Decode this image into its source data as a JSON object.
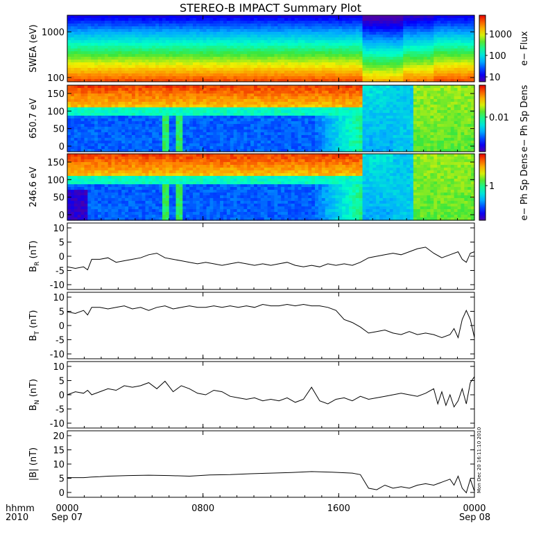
{
  "title": "STEREO-B IMPACT Summary Plot",
  "footer": {
    "hhmm": "hhmm",
    "year": "2010",
    "start_date": "Sep 07",
    "end_date": "Sep 08",
    "timestamp": "Mon Dec 20 16:11:10 2010"
  },
  "time_ticks": [
    "0000",
    "0800",
    "1600",
    "0000"
  ],
  "colors": {
    "line": "#000000",
    "background": "#ffffff"
  },
  "chart_data": [
    {
      "type": "heatmap",
      "ylabel": "SWEA (eV)",
      "colorbar_label": "e− Flux",
      "y_scale": "log",
      "yticks": [
        "1000",
        "100"
      ],
      "cbar_ticks": [
        "1000",
        "100",
        "10"
      ],
      "profile_stops": [
        0.02,
        0.1,
        0.22,
        0.4,
        0.6,
        0.8,
        0.94
      ],
      "regime_x": [
        0,
        0.6,
        0.6,
        0.75,
        0.8,
        0.9,
        1.0
      ],
      "regime_shift": [
        0,
        0,
        0,
        0.12,
        0.08,
        0.0,
        0.0
      ]
    },
    {
      "type": "heatmap",
      "ylabel": "650.7 eV",
      "colorbar_label": "e− Ph Sp Dens",
      "ylim": [
        0,
        180
      ],
      "yticks": [
        "150",
        "100",
        "50",
        "0"
      ],
      "cbar_ticks": [
        "0.01"
      ]
    },
    {
      "type": "heatmap",
      "ylabel": "246.6 eV",
      "colorbar_label": "e− Ph Sp Dens",
      "ylim": [
        0,
        180
      ],
      "yticks": [
        "150",
        "100",
        "50",
        "0"
      ],
      "cbar_ticks": [
        "1"
      ]
    },
    {
      "type": "line",
      "ylabel_main": "B",
      "ylabel_sub": "R",
      "ylabel_unit": "(nT)",
      "ylim": [
        -11,
        11
      ],
      "yticks": [
        "10",
        "5",
        "0",
        "-5",
        "-10"
      ],
      "x": [
        0,
        0.02,
        0.04,
        0.05,
        0.06,
        0.08,
        0.1,
        0.12,
        0.14,
        0.16,
        0.18,
        0.2,
        0.22,
        0.24,
        0.26,
        0.28,
        0.3,
        0.32,
        0.34,
        0.36,
        0.38,
        0.4,
        0.42,
        0.44,
        0.46,
        0.48,
        0.5,
        0.52,
        0.54,
        0.56,
        0.58,
        0.6,
        0.62,
        0.64,
        0.66,
        0.68,
        0.7,
        0.72,
        0.74,
        0.76,
        0.78,
        0.8,
        0.82,
        0.84,
        0.86,
        0.88,
        0.9,
        0.92,
        0.94,
        0.96,
        0.97,
        0.98,
        0.99,
        1.0
      ],
      "y": [
        -3.5,
        -4,
        -3.5,
        -4.5,
        -1,
        -1,
        -0.5,
        -2,
        -1.5,
        -1,
        -0.5,
        0.5,
        1,
        -0.5,
        -1,
        -1.5,
        -2,
        -2.5,
        -2,
        -2.5,
        -3,
        -2.5,
        -2,
        -2.5,
        -3,
        -2.5,
        -3,
        -2.5,
        -2,
        -3,
        -3.5,
        -3,
        -3.5,
        -2.5,
        -3,
        -2.5,
        -3,
        -2,
        -0.5,
        0,
        0.5,
        1,
        0.5,
        1.5,
        2.5,
        3,
        1,
        -0.5,
        0.5,
        1.5,
        -1,
        -2,
        1,
        1.5
      ]
    },
    {
      "type": "line",
      "ylabel_main": "B",
      "ylabel_sub": "T",
      "ylabel_unit": "(nT)",
      "ylim": [
        -11,
        11
      ],
      "yticks": [
        "10",
        "5",
        "0",
        "-5",
        "-10"
      ],
      "x": [
        0,
        0.02,
        0.04,
        0.05,
        0.06,
        0.08,
        0.1,
        0.12,
        0.14,
        0.16,
        0.18,
        0.2,
        0.22,
        0.24,
        0.26,
        0.28,
        0.3,
        0.32,
        0.34,
        0.36,
        0.38,
        0.4,
        0.42,
        0.44,
        0.46,
        0.48,
        0.5,
        0.52,
        0.54,
        0.56,
        0.58,
        0.6,
        0.62,
        0.64,
        0.66,
        0.68,
        0.7,
        0.72,
        0.74,
        0.76,
        0.78,
        0.8,
        0.82,
        0.84,
        0.86,
        0.88,
        0.9,
        0.92,
        0.94,
        0.95,
        0.96,
        0.97,
        0.98,
        0.99,
        1.0
      ],
      "y": [
        4.5,
        4,
        5,
        3.5,
        6,
        6,
        5.5,
        6,
        6.5,
        5.5,
        6,
        5,
        6,
        6.5,
        5.5,
        6,
        6.5,
        6,
        6,
        6.5,
        6,
        6.5,
        6,
        6.5,
        6,
        7,
        6.5,
        6.5,
        7,
        6.5,
        7,
        6.5,
        6.5,
        6,
        5,
        2,
        1,
        -0.5,
        -2.5,
        -2,
        -1.5,
        -2.5,
        -3,
        -2,
        -3,
        -2.5,
        -3,
        -4,
        -3,
        -1,
        -4,
        2,
        5,
        2,
        -4
      ]
    },
    {
      "type": "line",
      "ylabel_main": "B",
      "ylabel_sub": "N",
      "ylabel_unit": "(nT)",
      "ylim": [
        -11,
        11
      ],
      "yticks": [
        "10",
        "5",
        "0",
        "-5",
        "-10"
      ],
      "x": [
        0,
        0.02,
        0.04,
        0.05,
        0.06,
        0.08,
        0.1,
        0.12,
        0.14,
        0.16,
        0.18,
        0.2,
        0.22,
        0.24,
        0.26,
        0.28,
        0.3,
        0.32,
        0.34,
        0.36,
        0.38,
        0.4,
        0.42,
        0.44,
        0.46,
        0.48,
        0.5,
        0.52,
        0.54,
        0.56,
        0.58,
        0.6,
        0.62,
        0.64,
        0.66,
        0.68,
        0.7,
        0.72,
        0.74,
        0.76,
        0.78,
        0.8,
        0.82,
        0.84,
        0.86,
        0.88,
        0.9,
        0.91,
        0.92,
        0.93,
        0.94,
        0.95,
        0.96,
        0.97,
        0.98,
        0.99,
        1.0
      ],
      "y": [
        0,
        1,
        0.5,
        1.5,
        0,
        1,
        2,
        1.5,
        3,
        2.5,
        3,
        4,
        2,
        4.5,
        1,
        3,
        2,
        0.5,
        0,
        1.5,
        1,
        -0.5,
        -1,
        -1.5,
        -1,
        -2,
        -1.5,
        -2,
        -1,
        -2.5,
        -1.5,
        2.5,
        -2,
        -3,
        -1.5,
        -1,
        -2,
        -0.5,
        -1.5,
        -1,
        -0.5,
        0,
        0.5,
        0,
        -0.5,
        0.5,
        2,
        -3,
        1,
        -3.5,
        0,
        -4,
        -2,
        2,
        -3,
        4,
        6
      ]
    },
    {
      "type": "line",
      "ylabel_main": "|B|",
      "ylabel_sub": "",
      "ylabel_unit": "(nT)",
      "ylim": [
        -1,
        21
      ],
      "yticks": [
        "20",
        "15",
        "10",
        "5",
        "0"
      ],
      "x": [
        0,
        0.04,
        0.06,
        0.08,
        0.1,
        0.15,
        0.2,
        0.25,
        0.3,
        0.35,
        0.4,
        0.45,
        0.5,
        0.55,
        0.6,
        0.65,
        0.7,
        0.72,
        0.74,
        0.76,
        0.78,
        0.8,
        0.82,
        0.84,
        0.86,
        0.88,
        0.9,
        0.92,
        0.94,
        0.95,
        0.96,
        0.97,
        0.98,
        0.99,
        1.0
      ],
      "y": [
        5.5,
        5.5,
        5.7,
        5.8,
        6,
        6.2,
        6.3,
        6.2,
        6,
        6.4,
        6.5,
        6.8,
        7,
        7.2,
        7.5,
        7.3,
        7,
        6.5,
        2,
        1.5,
        3,
        2,
        2.5,
        2,
        3,
        3.5,
        3,
        4,
        5,
        3,
        6,
        2,
        0.5,
        5,
        1
      ]
    }
  ]
}
